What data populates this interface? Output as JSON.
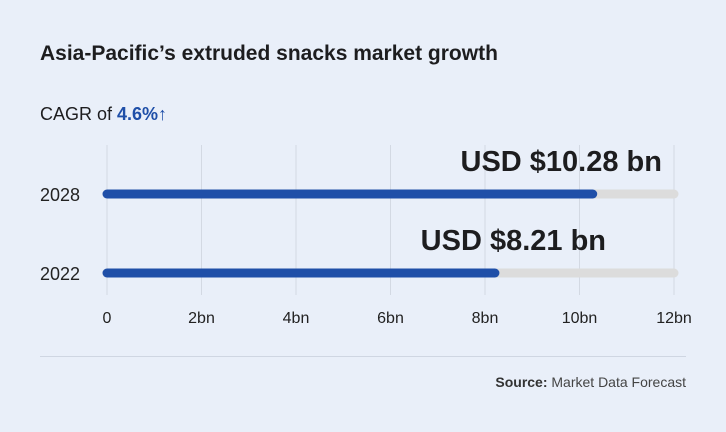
{
  "chart_data": {
    "type": "bar",
    "orientation": "horizontal",
    "title": "Asia-Pacific’s extruded snacks market growth",
    "subtitle_prefix": "CAGR of ",
    "subtitle_value": "4.6%↑",
    "categories": [
      "2028",
      "2022"
    ],
    "values": [
      10.28,
      8.21
    ],
    "data_labels": [
      "USD $10.28 bn",
      "USD $8.21 bn"
    ],
    "xlim": [
      0,
      12
    ],
    "xticks": [
      0,
      2,
      4,
      6,
      8,
      10,
      12
    ],
    "xtick_labels": [
      "0",
      "2bn",
      "4bn",
      "6bn",
      "8bn",
      "10bn",
      "12bn"
    ],
    "grid": true,
    "colors": {
      "bar": "#1f4fa8",
      "track": "#dcdcdc",
      "grid": "#d3d9e3"
    }
  },
  "source": {
    "label": "Source:",
    "text": " Market Data Forecast"
  }
}
